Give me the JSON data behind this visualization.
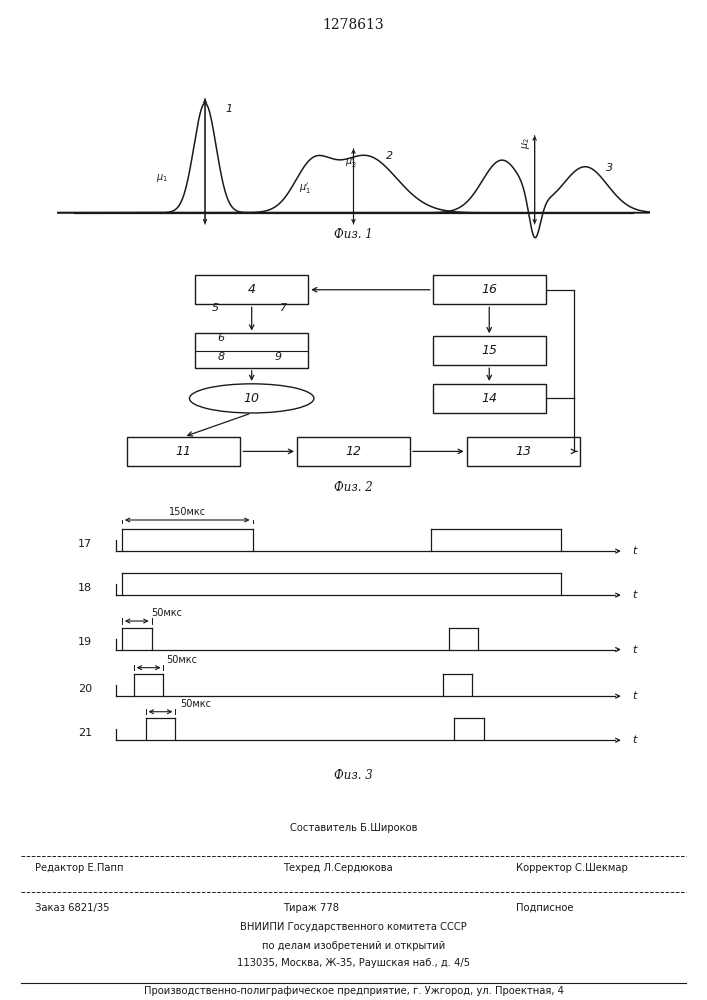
{
  "title_patent": "1278613",
  "bg_color": "#ffffff",
  "line_color": "#1a1a1a",
  "fig1_caption": "Физ. 1",
  "fig2_caption": "Физ. 2",
  "fig3_caption": "Физ. 3"
}
